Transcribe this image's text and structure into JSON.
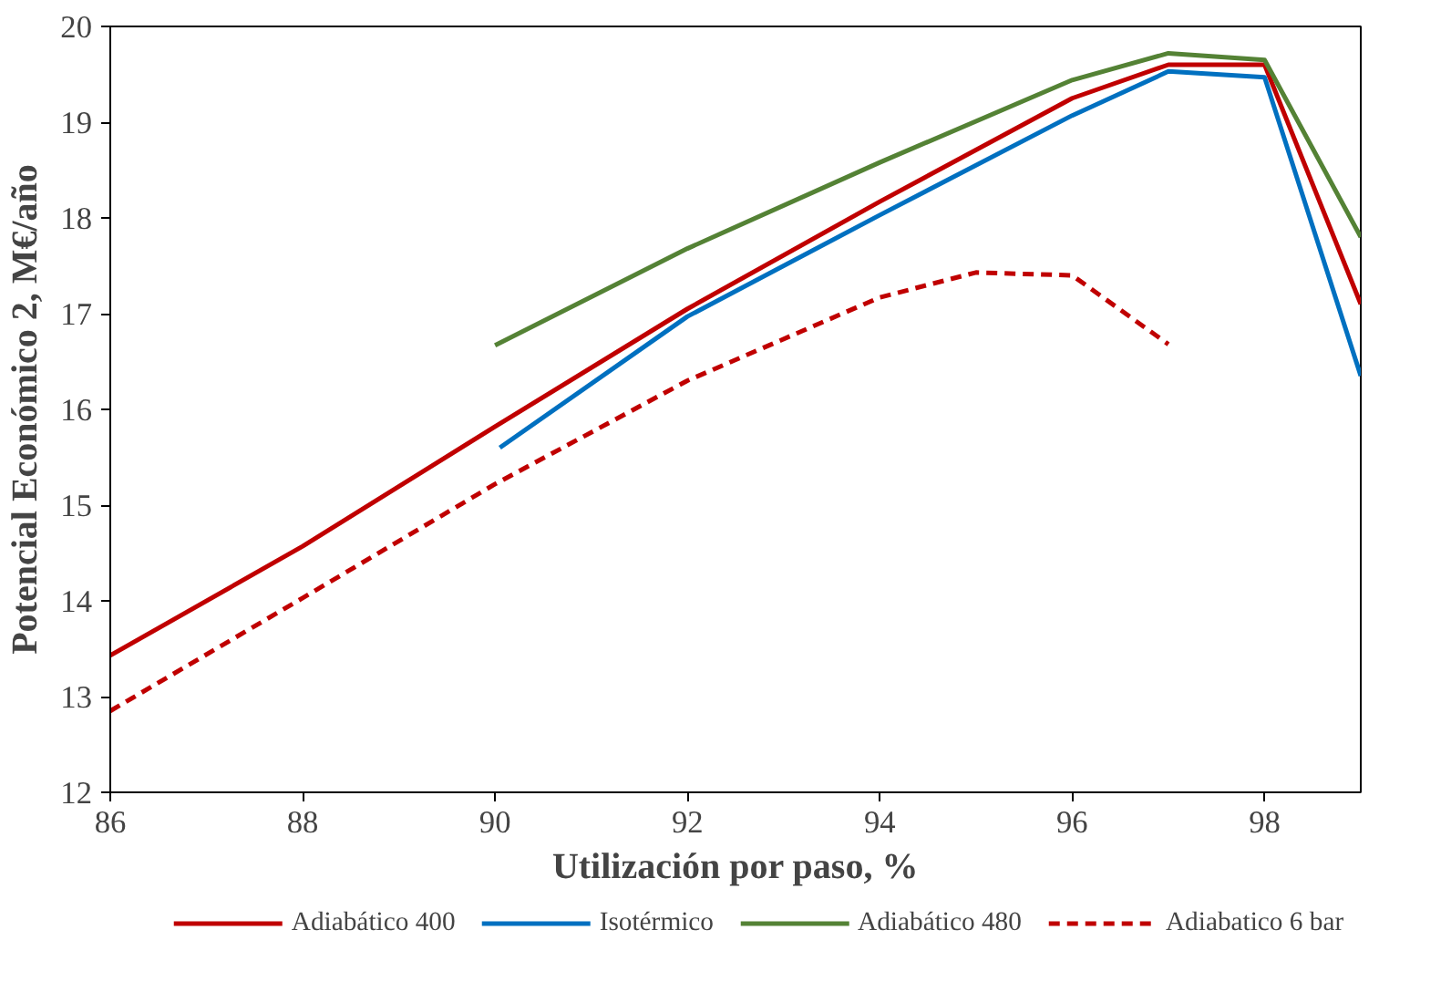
{
  "chart_data": {
    "type": "line",
    "xlabel": "Utilización por paso, %",
    "ylabel": "Potencial Económico 2, M€/año",
    "xlim": [
      86,
      99
    ],
    "ylim": [
      12,
      20
    ],
    "xticks": [
      86,
      88,
      90,
      92,
      94,
      96,
      98
    ],
    "yticks": [
      12,
      13,
      14,
      15,
      16,
      17,
      18,
      19,
      20
    ],
    "grid": false,
    "legend": "bottom",
    "marker": "none",
    "series": [
      {
        "name": "Adiabático 400",
        "color": "#c00000",
        "line_style": "solid",
        "x": [
          86,
          88,
          90,
          92,
          94,
          96,
          97,
          98,
          99
        ],
        "values": [
          13.43,
          14.57,
          15.82,
          17.05,
          18.17,
          19.25,
          19.6,
          19.6,
          17.1
        ]
      },
      {
        "name": "Isotérmico",
        "color": "#0070c0",
        "line_style": "solid",
        "x": [
          90.05,
          92,
          94,
          96,
          97,
          98,
          99
        ],
        "values": [
          15.6,
          16.97,
          18.03,
          19.07,
          19.53,
          19.47,
          16.35
        ]
      },
      {
        "name": "Adiabático 480",
        "color": "#548235",
        "line_style": "solid",
        "x": [
          90,
          92,
          94,
          96,
          97,
          98,
          99
        ],
        "values": [
          16.67,
          17.68,
          18.58,
          19.44,
          19.72,
          19.65,
          17.8
        ]
      },
      {
        "name": "Adiabatico 6 bar",
        "color": "#c00000",
        "line_style": "dashed",
        "x": [
          86,
          88,
          90,
          92,
          94,
          95,
          96,
          97
        ],
        "values": [
          12.85,
          14.03,
          15.22,
          16.3,
          17.17,
          17.43,
          17.4,
          16.68
        ]
      }
    ]
  }
}
